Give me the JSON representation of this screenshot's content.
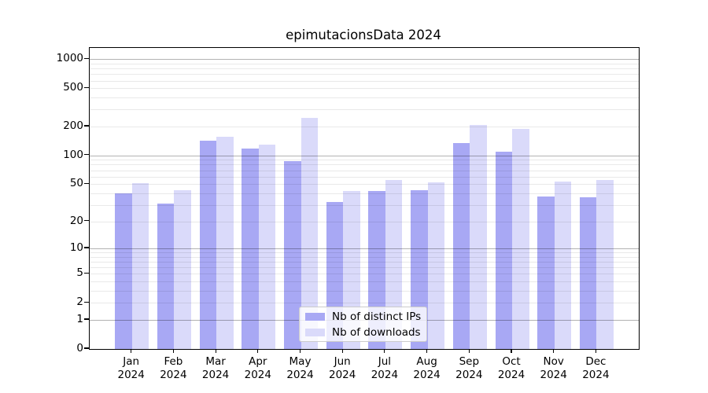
{
  "chart_data": {
    "type": "bar",
    "title": "epimutacionsData 2024",
    "months": [
      "Jan",
      "Feb",
      "Mar",
      "Apr",
      "May",
      "Jun",
      "Jul",
      "Aug",
      "Sep",
      "Oct",
      "Nov",
      "Dec"
    ],
    "year": "2024",
    "series": [
      {
        "name": "Nb of distinct IPs",
        "color": "#a8a8f4",
        "values": [
          40,
          31,
          142,
          118,
          87,
          32,
          42,
          43,
          134,
          109,
          37,
          36
        ]
      },
      {
        "name": "Nb of downloads",
        "color": "#dadafa",
        "values": [
          51,
          43,
          156,
          130,
          248,
          42,
          55,
          52,
          209,
          189,
          53,
          55
        ]
      }
    ],
    "y_ticks": [
      0,
      1,
      2,
      5,
      10,
      20,
      50,
      100,
      200,
      500,
      1000
    ],
    "y_scale": "log1p",
    "ylim": [
      0,
      1300
    ],
    "grid": {
      "major": [
        1,
        10,
        100,
        1000
      ],
      "minor_multiples": [
        2,
        3,
        4,
        5,
        6,
        7,
        8,
        9
      ]
    },
    "legend": {
      "position": "lower center"
    },
    "colors": {
      "axis": "#000000",
      "grid_major": "rgba(0,0,0,0.30)",
      "grid_minor": "rgba(0,0,0,0.085)"
    }
  }
}
